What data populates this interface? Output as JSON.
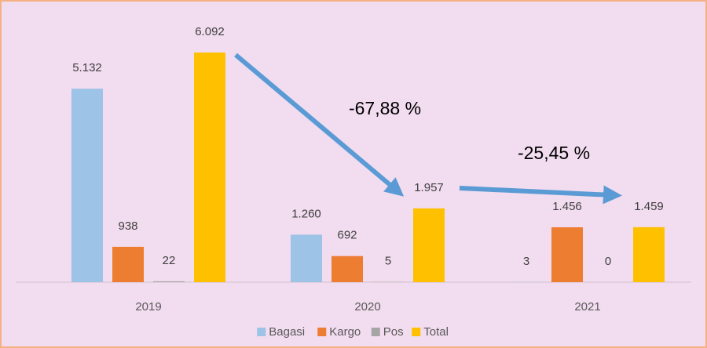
{
  "chart_data": {
    "type": "bar",
    "categories": [
      "2019",
      "2020",
      "2021"
    ],
    "series": [
      {
        "name": "Bagasi",
        "color": "#9dc3e6",
        "values": [
          5132,
          1260,
          3
        ],
        "value_labels": [
          "5.132",
          "1.260",
          "3"
        ]
      },
      {
        "name": "Kargo",
        "color": "#ed7d31",
        "values": [
          938,
          692,
          1456
        ],
        "value_labels": [
          "938",
          "692",
          "1.456"
        ]
      },
      {
        "name": "Pos",
        "color": "#a5a5a5",
        "values": [
          22,
          5,
          0
        ],
        "value_labels": [
          "22",
          "5",
          "0"
        ]
      },
      {
        "name": "Total",
        "color": "#ffc000",
        "values": [
          6092,
          1957,
          1459
        ],
        "value_labels": [
          "6.092",
          "1.957",
          "1.459"
        ]
      }
    ],
    "annotations": [
      "-67,88 %",
      "-25,45 %"
    ],
    "legend": "bottom"
  }
}
